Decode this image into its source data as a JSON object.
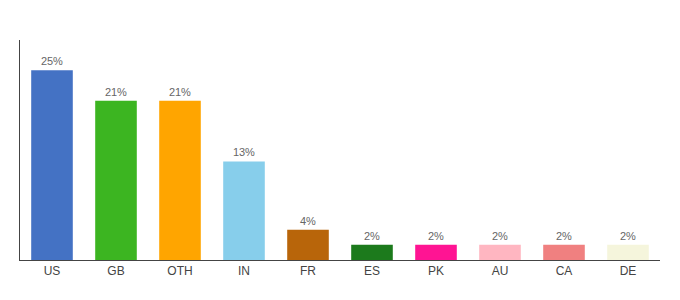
{
  "chart_data": {
    "type": "bar",
    "categories": [
      "US",
      "GB",
      "OTH",
      "IN",
      "FR",
      "ES",
      "PK",
      "AU",
      "CA",
      "DE"
    ],
    "values": [
      25,
      21,
      21,
      13,
      4,
      2,
      2,
      2,
      2,
      2
    ],
    "value_labels": [
      "25%",
      "21%",
      "21%",
      "13%",
      "4%",
      "2%",
      "2%",
      "2%",
      "2%",
      "2%"
    ],
    "colors": [
      "#4472C4",
      "#3CB521",
      "#FFA500",
      "#87CEEB",
      "#B8650A",
      "#1C7A1C",
      "#FF1493",
      "#FFB6C1",
      "#F08080",
      "#F5F5DC"
    ],
    "ylim": [
      0,
      29
    ],
    "data_labels": true,
    "grid": false,
    "tick_labels": "x"
  }
}
